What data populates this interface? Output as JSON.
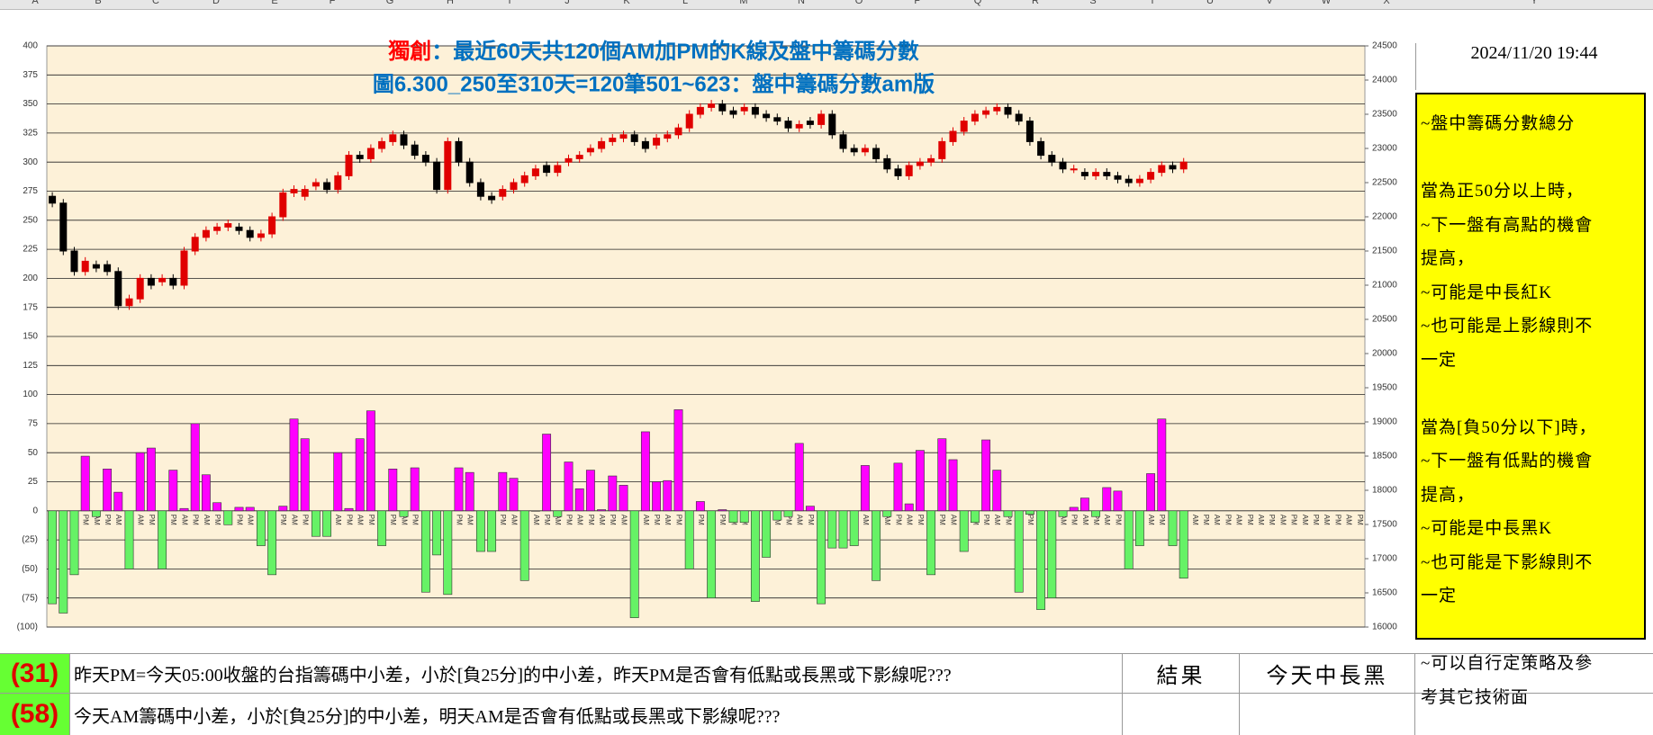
{
  "columns": [
    "A",
    "B",
    "C",
    "D",
    "E",
    "F",
    "G",
    "H",
    "I",
    "J",
    "K",
    "L",
    "M",
    "N",
    "O",
    "P",
    "Q",
    "R",
    "S",
    "T",
    "U",
    "V",
    "W",
    "X",
    "Y"
  ],
  "chart_data": {
    "type": "combo",
    "title": {
      "highlight": "獨創",
      "rest": "：最近60天共120個AM加PM的K線及盤中籌碼分數"
    },
    "subtitle": "圖6.300_250至310天=120筆501~623：盤中籌碼分數am版",
    "categories": [
      "AM",
      "PM",
      "AM",
      "PM",
      "AM",
      "PM",
      "AM",
      "PM",
      "AM",
      "PM",
      "AM",
      "PM",
      "AM",
      "PM",
      "AM",
      "PM",
      "AM",
      "PM",
      "AM",
      "PM",
      "AM",
      "PM",
      "AM",
      "PM",
      "AM",
      "PM",
      "AM",
      "PM",
      "AM",
      "PM",
      "AM",
      "PM",
      "AM",
      "PM",
      "AM",
      "PM",
      "AM",
      "PM",
      "AM",
      "PM",
      "AM",
      "PM",
      "AM",
      "PM",
      "AM",
      "PM",
      "AM",
      "PM",
      "AM",
      "PM",
      "AM",
      "PM",
      "AM",
      "PM",
      "AM",
      "PM",
      "AM",
      "PM",
      "AM",
      "PM",
      "AM",
      "PM",
      "AM",
      "PM",
      "AM",
      "PM",
      "AM",
      "PM",
      "AM",
      "PM",
      "AM",
      "PM",
      "AM",
      "PM",
      "AM",
      "PM",
      "AM",
      "PM",
      "AM",
      "PM",
      "AM",
      "PM",
      "AM",
      "PM",
      "AM",
      "PM",
      "AM",
      "PM",
      "AM",
      "PM",
      "AM",
      "PM",
      "AM",
      "PM",
      "AM",
      "PM",
      "AM",
      "PM",
      "AM",
      "PM",
      "AM",
      "PM",
      "AM",
      "PM",
      "AM",
      "PM",
      "AM",
      "PM",
      "AM",
      "PM",
      "AM",
      "PM",
      "AM",
      "PM",
      "AM",
      "PM",
      "AM",
      "PM",
      "AM",
      "PM"
    ],
    "series": [
      {
        "name": "score",
        "type": "bar",
        "pos_color": "#ff00ff",
        "neg_color": "#66f266",
        "values": [
          -80,
          -88,
          -55,
          47,
          -5,
          36,
          16,
          -50,
          50,
          54,
          -50,
          35,
          2,
          75,
          31,
          7,
          -12,
          3,
          3,
          -30,
          -55,
          4,
          79,
          62,
          -22,
          -22,
          50,
          2,
          62,
          86,
          -30,
          36,
          -5,
          37,
          -70,
          -38,
          -72,
          37,
          33,
          -35,
          -35,
          33,
          28,
          -60,
          0,
          66,
          -5,
          42,
          19,
          35,
          1,
          30,
          22,
          -92,
          68,
          25,
          26,
          87,
          -50,
          8,
          -75,
          1,
          -10,
          -10,
          -78,
          -40,
          -8,
          -5,
          58,
          4,
          -80,
          -32,
          -32,
          -30,
          39,
          -60,
          -5,
          41,
          6,
          52,
          -55,
          62,
          44,
          -35,
          -10,
          61,
          35,
          -5,
          -70,
          -3,
          -85,
          -75,
          -5,
          3,
          11,
          -5,
          20,
          17,
          -50,
          -30,
          32,
          79,
          -30,
          -58,
          null,
          null,
          null,
          null,
          null,
          null,
          null,
          null,
          null,
          null,
          null,
          null,
          null,
          null,
          null,
          null
        ]
      },
      {
        "name": "K",
        "type": "candlestick",
        "axis": "y2",
        "up_color": "#e00000",
        "down_color": "#000000",
        "values": [
          [
            22300,
            22360,
            22140,
            22200
          ],
          [
            22200,
            22260,
            21440,
            21500
          ],
          [
            21500,
            21560,
            21140,
            21200
          ],
          [
            21200,
            21410,
            21140,
            21350
          ],
          [
            21300,
            21360,
            21190,
            21250
          ],
          [
            21300,
            21360,
            21140,
            21200
          ],
          [
            21200,
            21260,
            20640,
            20700
          ],
          [
            20700,
            20860,
            20640,
            20800
          ],
          [
            20800,
            21160,
            20740,
            21100
          ],
          [
            21100,
            21160,
            20940,
            21000
          ],
          [
            21050,
            21160,
            20990,
            21100
          ],
          [
            21100,
            21160,
            20940,
            21000
          ],
          [
            21000,
            21560,
            20940,
            21500
          ],
          [
            21500,
            21760,
            21440,
            21700
          ],
          [
            21700,
            21860,
            21640,
            21800
          ],
          [
            21800,
            21910,
            21740,
            21850
          ],
          [
            21850,
            21960,
            21790,
            21900
          ],
          [
            21850,
            21910,
            21740,
            21800
          ],
          [
            21800,
            21860,
            21640,
            21700
          ],
          [
            21700,
            21810,
            21640,
            21750
          ],
          [
            21750,
            22060,
            21690,
            22000
          ],
          [
            22000,
            22410,
            21940,
            22350
          ],
          [
            22350,
            22460,
            22290,
            22400
          ],
          [
            22300,
            22460,
            22240,
            22400
          ],
          [
            22450,
            22560,
            22390,
            22500
          ],
          [
            22500,
            22560,
            22340,
            22400
          ],
          [
            22400,
            22660,
            22340,
            22600
          ],
          [
            22600,
            22960,
            22540,
            22900
          ],
          [
            22900,
            22960,
            22790,
            22850
          ],
          [
            22850,
            23060,
            22790,
            23000
          ],
          [
            23000,
            23160,
            22940,
            23100
          ],
          [
            23100,
            23260,
            23040,
            23200
          ],
          [
            23200,
            23260,
            22990,
            23050
          ],
          [
            23050,
            23110,
            22840,
            22900
          ],
          [
            22900,
            22960,
            22740,
            22800
          ],
          [
            22800,
            22860,
            22340,
            22400
          ],
          [
            22400,
            23160,
            22340,
            23100
          ],
          [
            23100,
            23160,
            22740,
            22800
          ],
          [
            22800,
            22860,
            22440,
            22500
          ],
          [
            22500,
            22560,
            22240,
            22300
          ],
          [
            22300,
            22360,
            22190,
            22250
          ],
          [
            22300,
            22460,
            22240,
            22400
          ],
          [
            22400,
            22560,
            22340,
            22500
          ],
          [
            22500,
            22660,
            22440,
            22600
          ],
          [
            22600,
            22760,
            22540,
            22700
          ],
          [
            22750,
            22810,
            22590,
            22650
          ],
          [
            22650,
            22810,
            22590,
            22750
          ],
          [
            22800,
            22910,
            22740,
            22850
          ],
          [
            22850,
            22960,
            22790,
            22900
          ],
          [
            22950,
            23060,
            22890,
            23000
          ],
          [
            23000,
            23160,
            22940,
            23100
          ],
          [
            23100,
            23210,
            23040,
            23150
          ],
          [
            23150,
            23260,
            23090,
            23200
          ],
          [
            23200,
            23260,
            23040,
            23100
          ],
          [
            23100,
            23160,
            22940,
            23000
          ],
          [
            23050,
            23210,
            22990,
            23150
          ],
          [
            23150,
            23260,
            23090,
            23200
          ],
          [
            23200,
            23360,
            23140,
            23300
          ],
          [
            23300,
            23560,
            23240,
            23500
          ],
          [
            23500,
            23660,
            23440,
            23600
          ],
          [
            23600,
            23710,
            23540,
            23650
          ],
          [
            23650,
            23710,
            23490,
            23550
          ],
          [
            23550,
            23610,
            23440,
            23500
          ],
          [
            23550,
            23660,
            23490,
            23600
          ],
          [
            23600,
            23660,
            23440,
            23500
          ],
          [
            23500,
            23560,
            23390,
            23450
          ],
          [
            23450,
            23510,
            23340,
            23400
          ],
          [
            23400,
            23460,
            23240,
            23300
          ],
          [
            23300,
            23410,
            23240,
            23350
          ],
          [
            23400,
            23460,
            23290,
            23350
          ],
          [
            23350,
            23560,
            23290,
            23500
          ],
          [
            23500,
            23560,
            23140,
            23200
          ],
          [
            23200,
            23260,
            22940,
            23000
          ],
          [
            23000,
            23060,
            22890,
            22950
          ],
          [
            22950,
            23060,
            22890,
            23000
          ],
          [
            23000,
            23060,
            22790,
            22850
          ],
          [
            22850,
            22910,
            22640,
            22700
          ],
          [
            22700,
            22760,
            22540,
            22600
          ],
          [
            22600,
            22810,
            22540,
            22750
          ],
          [
            22750,
            22860,
            22690,
            22800
          ],
          [
            22800,
            22910,
            22740,
            22850
          ],
          [
            22850,
            23160,
            22790,
            23100
          ],
          [
            23100,
            23310,
            23040,
            23250
          ],
          [
            23250,
            23460,
            23190,
            23400
          ],
          [
            23400,
            23560,
            23340,
            23500
          ],
          [
            23500,
            23610,
            23440,
            23550
          ],
          [
            23550,
            23660,
            23490,
            23600
          ],
          [
            23600,
            23660,
            23440,
            23500
          ],
          [
            23500,
            23560,
            23340,
            23400
          ],
          [
            23400,
            23460,
            23040,
            23100
          ],
          [
            23100,
            23160,
            22840,
            22900
          ],
          [
            22900,
            22960,
            22740,
            22800
          ],
          [
            22800,
            22860,
            22640,
            22700
          ],
          [
            22700,
            22760,
            22640,
            22700
          ],
          [
            22650,
            22710,
            22540,
            22600
          ],
          [
            22600,
            22710,
            22540,
            22650
          ],
          [
            22650,
            22710,
            22540,
            22600
          ],
          [
            22600,
            22660,
            22490,
            22550
          ],
          [
            22550,
            22610,
            22440,
            22500
          ],
          [
            22500,
            22610,
            22440,
            22550
          ],
          [
            22550,
            22710,
            22490,
            22650
          ],
          [
            22650,
            22810,
            22590,
            22750
          ],
          [
            22750,
            22810,
            22640,
            22700
          ],
          [
            22700,
            22860,
            22640,
            22800
          ],
          null,
          null,
          null,
          null,
          null,
          null,
          null,
          null,
          null,
          null,
          null,
          null,
          null,
          null,
          null,
          null
        ]
      }
    ],
    "ylim": [
      -100,
      400
    ],
    "yticks": [
      {
        "value": -100,
        "label": "(100)"
      },
      {
        "value": -75,
        "label": "(75)"
      },
      {
        "value": -50,
        "label": "(50)"
      },
      {
        "value": -25,
        "label": "(25)"
      },
      0,
      25,
      50,
      75,
      100,
      125,
      150,
      175,
      200,
      225,
      250,
      275,
      300,
      325,
      350,
      375,
      400
    ],
    "y2lim": [
      16000,
      24500
    ],
    "y2ticks": [
      16000,
      16500,
      17000,
      17500,
      18000,
      18500,
      19000,
      19500,
      20000,
      20500,
      21000,
      21500,
      22000,
      22500,
      23000,
      23500,
      24000,
      24500
    ],
    "grid": true
  },
  "datetime": "2024/11/20 19:44",
  "notes": [
    [
      "~盤中籌碼分數總分"
    ],
    [
      "當為正50分以上時，",
      "~下一盤有高點的機會",
      "提高，",
      "~可能是中長紅K",
      "~也可能是上影線則不",
      "一定"
    ],
    [
      "當為[負50分以下]時，",
      "~下一盤有低點的機會",
      "提高，",
      "~可能是中長黑K",
      "~也可能是下影線則不",
      "一定"
    ],
    [
      "~可以自行定策略及參",
      "考其它技術面"
    ]
  ],
  "rows": [
    {
      "score": "(31)",
      "text": "昨天PM=今天05:00收盤的台指籌碼中小差，小於[負25分]的中小差，昨天PM是否會有低點或長黑或下影線呢???",
      "result_label": "結果",
      "result": "今天中長黑"
    },
    {
      "score": "(58)",
      "text": "今天AM籌碼中小差，小於[負25分]的中小差，明天AM是否會有低點或長黑或下影線呢???"
    }
  ]
}
